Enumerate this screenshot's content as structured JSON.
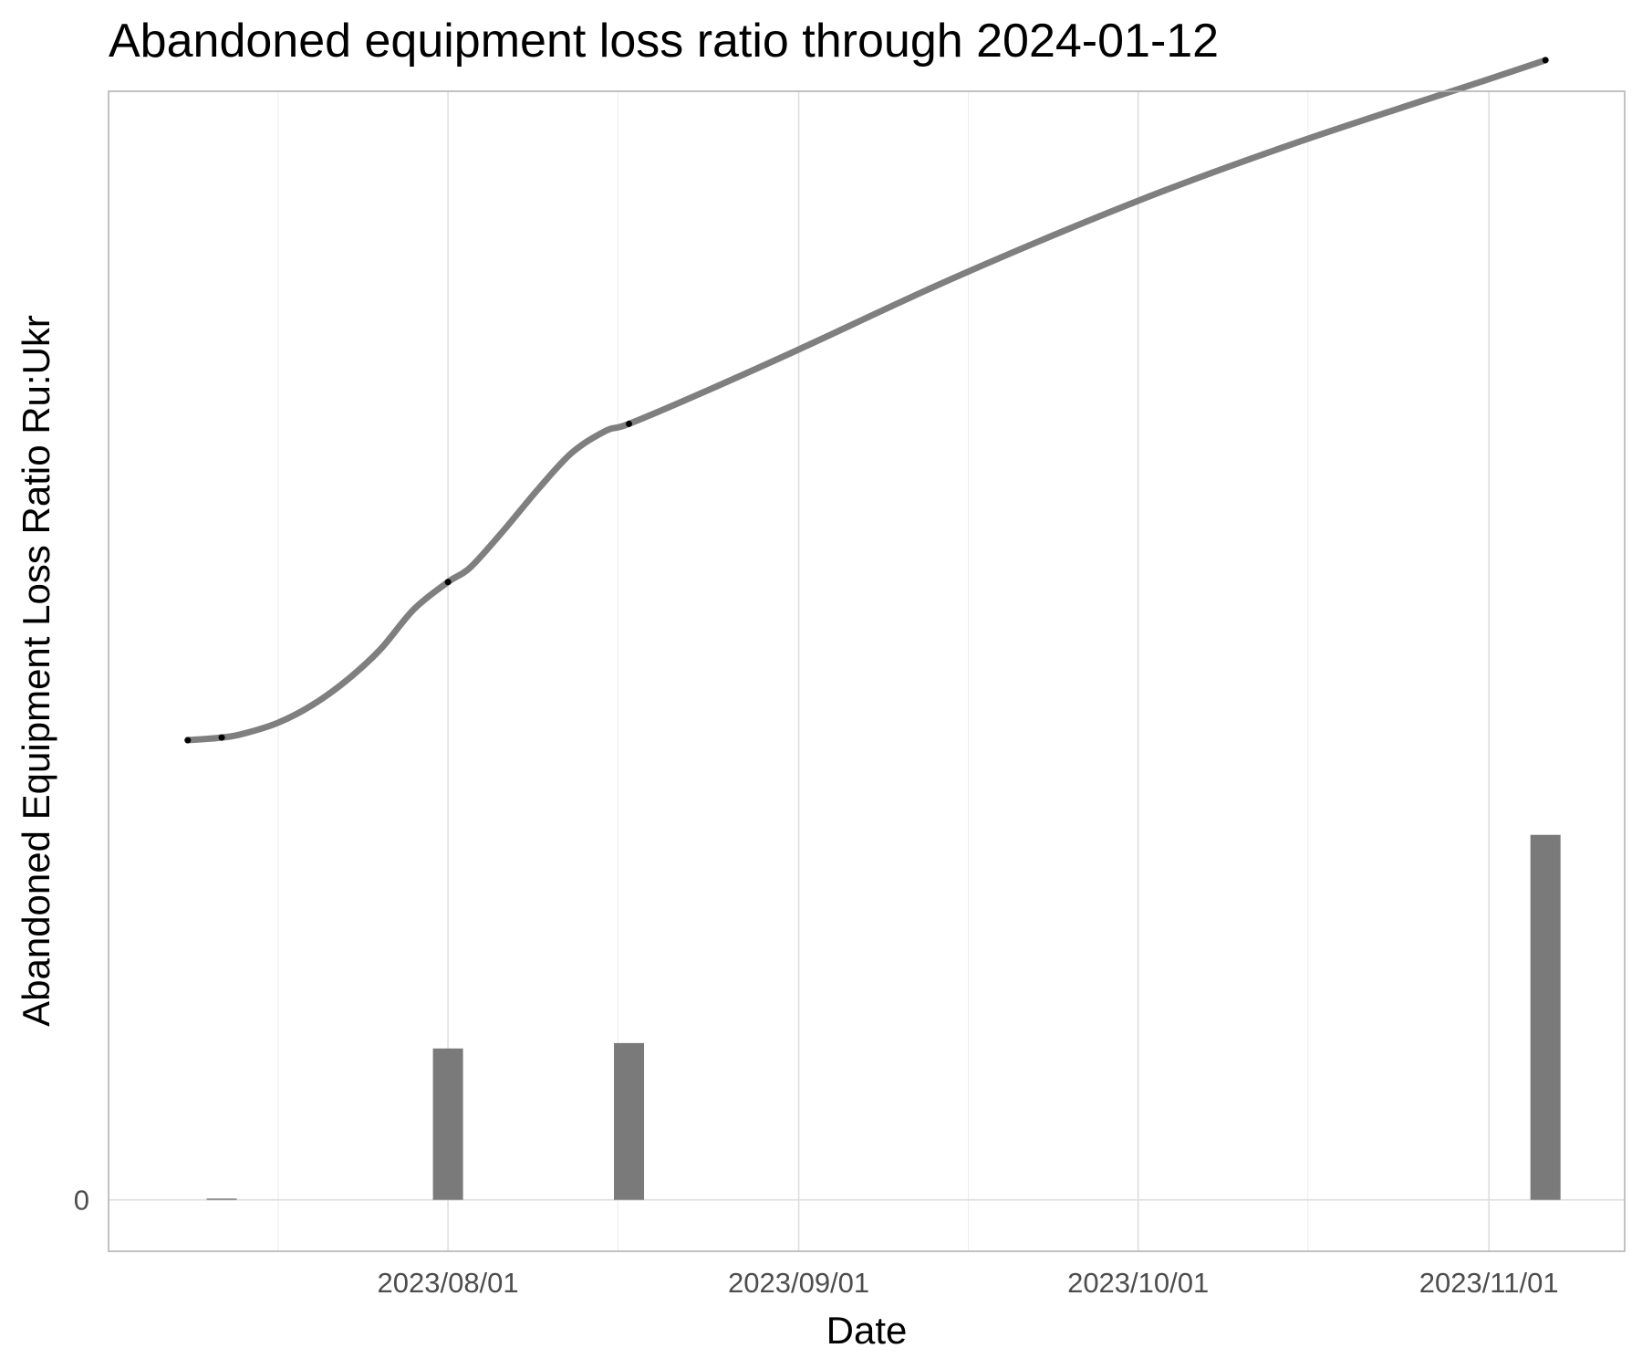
{
  "chart_data": {
    "type": "line",
    "title": "Abandoned equipment loss ratio through 2024-01-12",
    "xlabel": "Date",
    "ylabel": "Abandoned Equipment Loss Ratio Ru:Ukr",
    "x_type": "date",
    "xlim": [
      "2023-07-02",
      "2023-11-13"
    ],
    "ylim": [
      -0.38,
      8.2
    ],
    "x_major_ticks": [
      "2023-08-01",
      "2023-09-01",
      "2023-10-01",
      "2023-11-01"
    ],
    "x_tick_labels": [
      "2023/08/01",
      "2023/09/01",
      "2023/10/01",
      "2023/11/01"
    ],
    "x_minor_ticks": [
      "2023-07-17",
      "2023-08-16",
      "2023-09-16",
      "2023-10-16"
    ],
    "y_ticks": [
      0
    ],
    "y_tick_labels": [
      "0"
    ],
    "grid": true,
    "legend": "none",
    "colors": {
      "smooth_line": "#7f7f7f",
      "points": "#000000",
      "bars": "#7a7a7a"
    },
    "series": [
      {
        "type": "line",
        "points": [
          {
            "x": "2023-07-09",
            "y": 3.4
          },
          {
            "x": "2023-07-12",
            "y": 3.42
          },
          {
            "x": "2023-08-01",
            "y": 4.57
          },
          {
            "x": "2023-08-17",
            "y": 5.74
          },
          {
            "x": "2023-11-06",
            "y": 8.43
          }
        ],
        "smooth": [
          {
            "x": "2023-07-09",
            "y": 3.4
          },
          {
            "x": "2023-07-12",
            "y": 3.42
          },
          {
            "x": "2023-07-14",
            "y": 3.45
          },
          {
            "x": "2023-07-17",
            "y": 3.53
          },
          {
            "x": "2023-07-20",
            "y": 3.66
          },
          {
            "x": "2023-07-23",
            "y": 3.84
          },
          {
            "x": "2023-07-26",
            "y": 4.07
          },
          {
            "x": "2023-07-29",
            "y": 4.37
          },
          {
            "x": "2023-08-01",
            "y": 4.57
          },
          {
            "x": "2023-08-03",
            "y": 4.68
          },
          {
            "x": "2023-08-06",
            "y": 4.96
          },
          {
            "x": "2023-08-09",
            "y": 5.26
          },
          {
            "x": "2023-08-12",
            "y": 5.53
          },
          {
            "x": "2023-08-15",
            "y": 5.69
          },
          {
            "x": "2023-08-17",
            "y": 5.74
          },
          {
            "x": "2023-08-24",
            "y": 5.99
          },
          {
            "x": "2023-09-01",
            "y": 6.29
          },
          {
            "x": "2023-09-15",
            "y": 6.83
          },
          {
            "x": "2023-10-01",
            "y": 7.39
          },
          {
            "x": "2023-10-15",
            "y": 7.82
          },
          {
            "x": "2023-11-01",
            "y": 8.29
          },
          {
            "x": "2023-11-06",
            "y": 8.43
          }
        ]
      },
      {
        "type": "bar",
        "points": [
          {
            "x": "2023-07-12",
            "y": 0.01
          },
          {
            "x": "2023-08-01",
            "y": 1.12
          },
          {
            "x": "2023-08-17",
            "y": 1.16
          },
          {
            "x": "2023-11-06",
            "y": 2.7
          }
        ]
      }
    ]
  }
}
